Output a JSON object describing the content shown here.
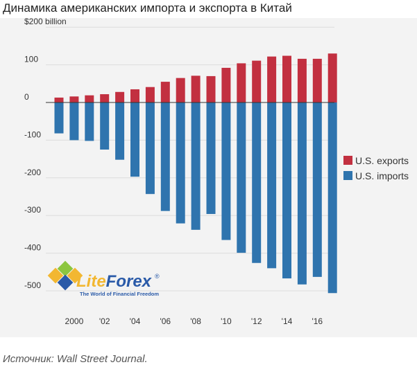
{
  "title": "Динамика американских импорта и экспорта в Китай",
  "source": "Источник: Wall Street Journal.",
  "colors": {
    "exports": "#c23040",
    "imports": "#2f74ae",
    "grid": "#dcdcdc",
    "panel": "#f3f3f3"
  },
  "logo": {
    "name_lite": "Lite",
    "name_forex": "Forex",
    "registered": "®",
    "tagline": "The World of Financial Freedom"
  },
  "chart_data": {
    "type": "bar",
    "x": [
      1999,
      2000,
      2001,
      2002,
      2003,
      2004,
      2005,
      2006,
      2007,
      2008,
      2009,
      2010,
      2011,
      2012,
      2013,
      2014,
      2015,
      2016,
      2017
    ],
    "series": [
      {
        "name": "U.S. exports",
        "values": [
          13,
          16,
          19,
          22,
          28,
          35,
          41,
          55,
          65,
          71,
          70,
          92,
          104,
          111,
          122,
          124,
          116,
          116,
          130
        ]
      },
      {
        "name": "U.S. imports",
        "values": [
          -82,
          -100,
          -102,
          -125,
          -152,
          -197,
          -243,
          -288,
          -321,
          -338,
          -296,
          -365,
          -399,
          -426,
          -440,
          -467,
          -483,
          -463,
          -506
        ]
      }
    ],
    "ylim": [
      -550,
      200
    ],
    "yticks": [
      200,
      100,
      0,
      -100,
      -200,
      -300,
      -400,
      -500
    ],
    "ytick_labels": [
      "$200 billion",
      "100",
      "0",
      "-100",
      "-200",
      "-300",
      "-400",
      "-500"
    ],
    "xticks": [
      2000,
      2002,
      2004,
      2006,
      2008,
      2010,
      2012,
      2014,
      2016
    ],
    "xtick_labels": [
      "2000",
      "'02",
      "'04",
      "'06",
      "'08",
      "'10",
      "'12",
      "'14",
      "'16"
    ],
    "legend": {
      "placement": "right",
      "entries": [
        "U.S. exports",
        "U.S. imports"
      ]
    },
    "grid": true
  }
}
